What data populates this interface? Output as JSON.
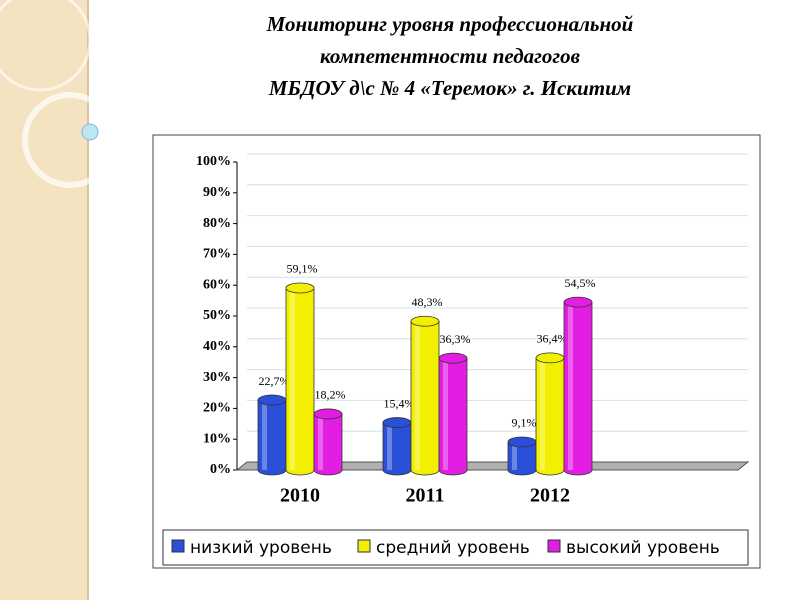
{
  "chart_data": {
    "type": "bar",
    "title": [
      "Мониторинг  уровня профессиональной",
      "компетентности педагогов",
      "МБДОУ д\\с № 4  «Теремок» г. Искитим"
    ],
    "categories": [
      "2010",
      "2011",
      "2012"
    ],
    "series": [
      {
        "name": "низкий уровень",
        "color": "#2a4fd8",
        "values": [
          22.7,
          15.4,
          9.1
        ],
        "value_labels": [
          "22,7%",
          "15,4%",
          "9,1%"
        ]
      },
      {
        "name": "средний уровень",
        "color": "#f2f000",
        "values": [
          59.1,
          48.3,
          36.4
        ],
        "value_labels": [
          "59,1%",
          "48,3%",
          "36,4%"
        ]
      },
      {
        "name": "высокий уровень",
        "color": "#e21ee2",
        "values": [
          18.2,
          36.3,
          54.5
        ],
        "value_labels": [
          "18,2%",
          "36,3%",
          "54,5%"
        ]
      }
    ],
    "ylim": [
      0,
      100
    ],
    "yticks": [
      {
        "value": 0,
        "label": "0%"
      },
      {
        "value": 10,
        "label": "10%"
      },
      {
        "value": 20,
        "label": "20%"
      },
      {
        "value": 30,
        "label": "30%"
      },
      {
        "value": 40,
        "label": "40%"
      },
      {
        "value": 50,
        "label": "50%"
      },
      {
        "value": 60,
        "label": "60%"
      },
      {
        "value": 70,
        "label": "70%"
      },
      {
        "value": 80,
        "label": "80%"
      },
      {
        "value": 90,
        "label": "90%"
      },
      {
        "value": 100,
        "label": "100%"
      }
    ],
    "grid": true
  }
}
